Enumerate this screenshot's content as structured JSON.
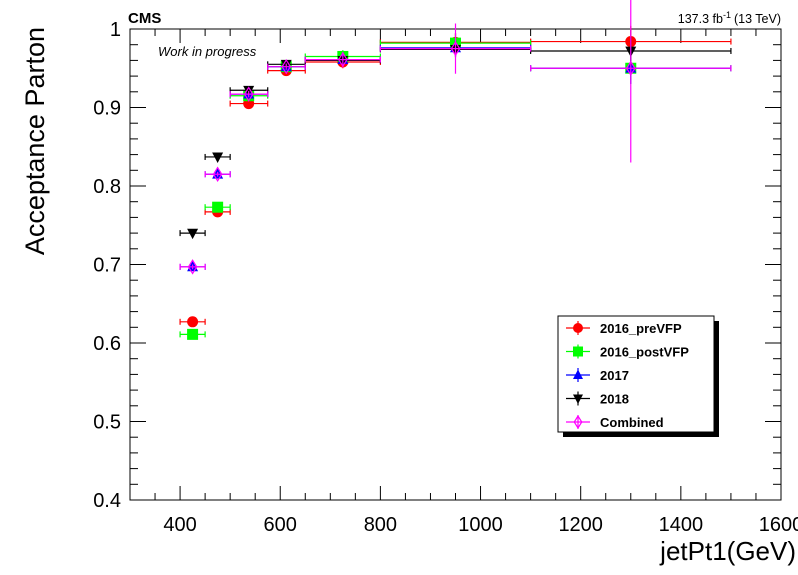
{
  "chart_data": {
    "type": "scatter",
    "experiment_label": "CMS",
    "annotation": "Work in progress",
    "lumi_value": "137.3 fb",
    "lumi_exponent": "-1",
    "lumi_energy": "(13 TeV)",
    "xlabel": "jetPt1(GeV)",
    "ylabel": "Acceptance Parton",
    "xlim": [
      300,
      1600
    ],
    "ylim": [
      0.4,
      1.0
    ],
    "x_ticks": [
      400,
      600,
      800,
      1000,
      1200,
      1400,
      1600
    ],
    "x_tick_labels": [
      "400",
      "600",
      "800",
      "1000",
      "1200",
      "1400",
      "1600"
    ],
    "y_ticks": [
      0.4,
      0.5,
      0.6,
      0.7,
      0.8,
      0.9,
      1.0
    ],
    "y_tick_labels": [
      "0.4",
      "0.5",
      "0.6",
      "0.7",
      "0.8",
      "0.9",
      "1"
    ],
    "legend_position": "bottom-right",
    "bins": [
      {
        "x": 425,
        "xlo": 400,
        "xhi": 450
      },
      {
        "x": 475,
        "xlo": 450,
        "xhi": 500
      },
      {
        "x": 537,
        "xlo": 500,
        "xhi": 575
      },
      {
        "x": 612,
        "xlo": 575,
        "xhi": 650
      },
      {
        "x": 725,
        "xlo": 650,
        "xhi": 800
      },
      {
        "x": 950,
        "xlo": 800,
        "xhi": 1100
      },
      {
        "x": 1300,
        "xlo": 1100,
        "xhi": 1500
      }
    ],
    "series": [
      {
        "name": "2016_preVFP",
        "color": "#ff0000",
        "marker": "circle",
        "values": [
          0.627,
          0.767,
          0.905,
          0.947,
          0.958,
          0.983,
          0.984
        ],
        "yerr": [
          0.004,
          0.004,
          0.004,
          0.005,
          0.008,
          0.012,
          0.02
        ]
      },
      {
        "name": "2016_postVFP",
        "color": "#00ff00",
        "marker": "square",
        "values": [
          0.611,
          0.773,
          0.915,
          0.952,
          0.965,
          0.982,
          0.95
        ],
        "yerr": [
          0.004,
          0.004,
          0.004,
          0.005,
          0.008,
          0.012,
          0.02
        ]
      },
      {
        "name": "2017",
        "color": "#0000ff",
        "marker": "triangle-up",
        "values": [
          0.697,
          0.815,
          0.917,
          0.952,
          0.961,
          0.976,
          0.95
        ],
        "yerr": [
          0.003,
          0.003,
          0.004,
          0.004,
          0.007,
          0.01,
          0.02
        ]
      },
      {
        "name": "2018",
        "color": "#000000",
        "marker": "triangle-down",
        "values": [
          0.74,
          0.837,
          0.922,
          0.955,
          0.96,
          0.974,
          0.972
        ],
        "yerr": [
          0.003,
          0.003,
          0.004,
          0.004,
          0.006,
          0.01,
          0.018
        ]
      },
      {
        "name": "Combined",
        "color": "#ff00ff",
        "marker": "diamond-open",
        "values": [
          0.697,
          0.815,
          0.917,
          0.952,
          0.961,
          0.975,
          0.95
        ],
        "yerr": [
          0.003,
          0.003,
          0.004,
          0.004,
          0.01,
          0.032,
          0.12
        ]
      }
    ]
  }
}
